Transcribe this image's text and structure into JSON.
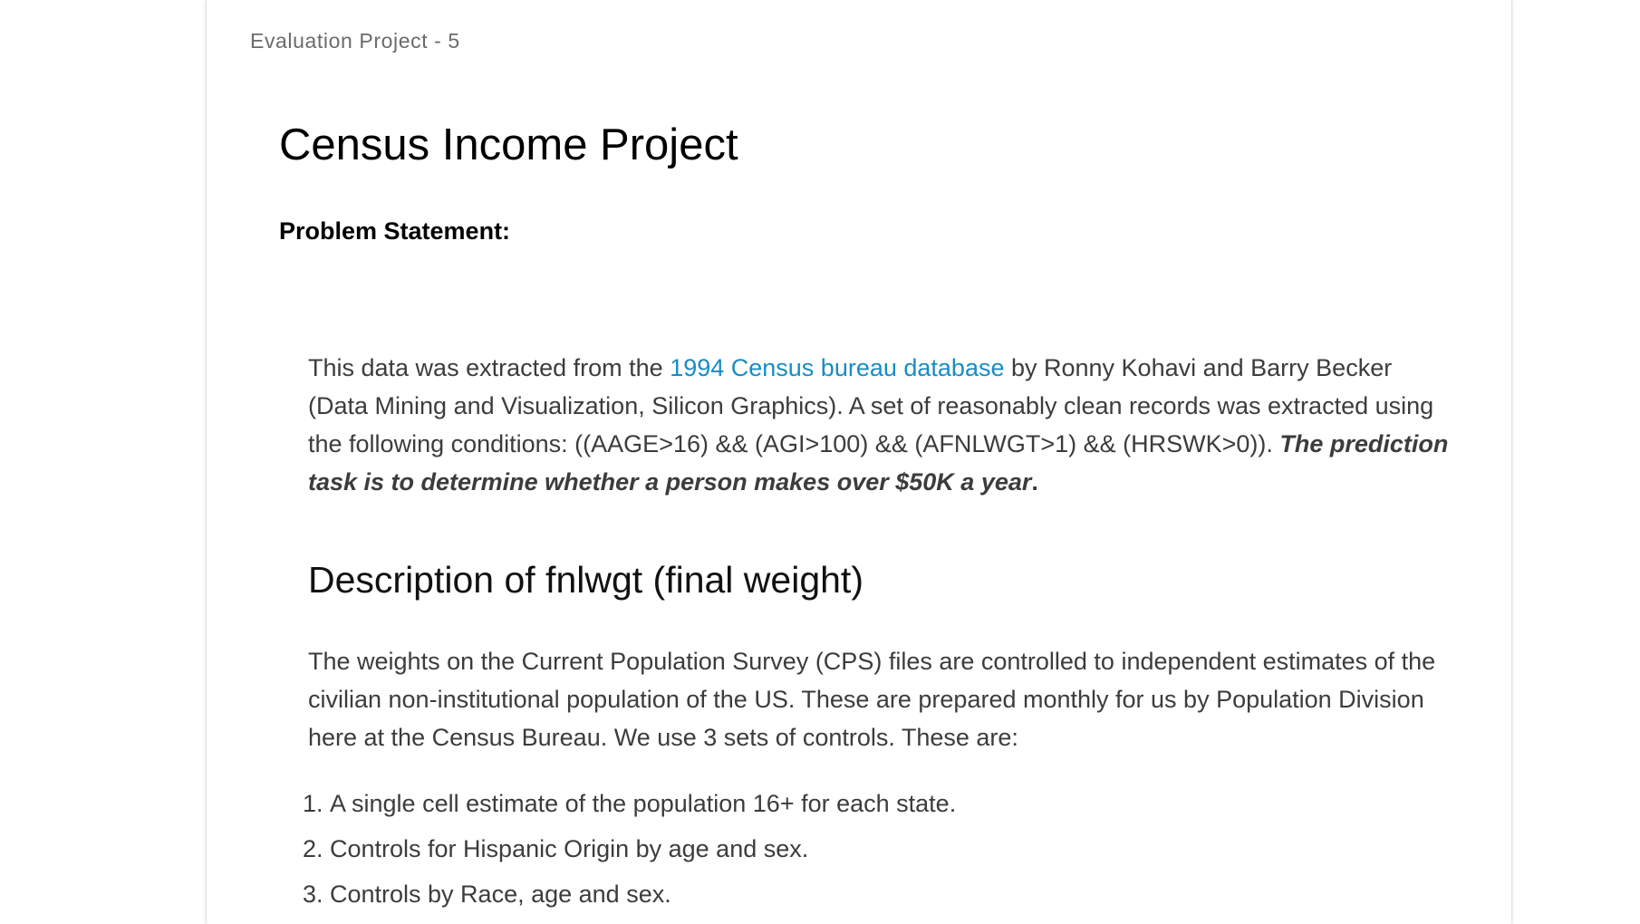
{
  "header": {
    "label": "Evaluation Project - 5"
  },
  "document": {
    "title": "Census Income Project",
    "problem_heading": "Problem Statement:",
    "intro": {
      "text_before_link": "This data was extracted from the ",
      "link_text": "1994 Census bureau database",
      "text_after_link": " by Ronny Kohavi and Barry Becker (Data Mining and Visualization, Silicon Graphics). A set of reasonably clean records was extracted using the following conditions: ((AAGE>16) && (AGI>100) && (AFNLWGT>1) && (HRSWK>0)). ",
      "emphasis": "The prediction task is to determine whether a person makes over $50K a year",
      "trailing": "."
    },
    "section": {
      "heading": "Description of fnlwgt (final weight)",
      "paragraph": "The weights on the Current Population Survey (CPS) files are controlled to independent estimates of the civilian non-institutional population of the US. These are prepared monthly for us by Population Division here at the Census Bureau. We use 3 sets of controls. These are:",
      "list": [
        "A single cell estimate of the population 16+ for each state.",
        "Controls for Hispanic Origin by age and sex.",
        "Controls by Race, age and sex."
      ]
    }
  },
  "colors": {
    "link": "#1a8cc2",
    "body_text": "#3c3c3c",
    "header_text": "#6b6b6b"
  }
}
